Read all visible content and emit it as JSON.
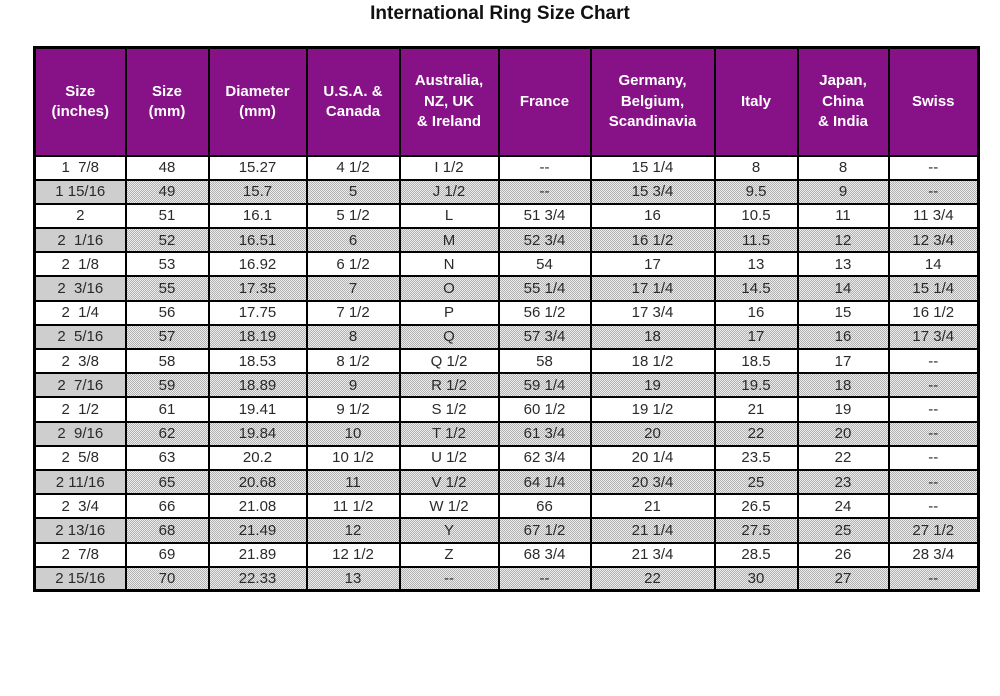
{
  "title": "International Ring Size Chart",
  "colors": {
    "header_bg": "#871287",
    "header_text": "#ffffff",
    "border_color": "#000000",
    "text_color": "#2a2a2a",
    "page_bg": "#ffffff"
  },
  "chart_data": {
    "type": "table",
    "title": "International Ring Size Chart",
    "columns": [
      "Size\n(inches)",
      "Size\n(mm)",
      "Diameter\n(mm)",
      "U.S.A. &\nCanada",
      "Australia,\nNZ, UK\n& Ireland",
      "France",
      "Germany,\nBelgium,\nScandinavia",
      "Italy",
      "Japan,\nChina\n& India",
      "Swiss"
    ],
    "rows": [
      [
        "1  7/8",
        "48",
        "15.27",
        "4 1/2",
        "I 1/2",
        "--",
        "15 1/4",
        "8",
        "8",
        "--"
      ],
      [
        "1 15/16",
        "49",
        "15.7",
        "5",
        "J 1/2",
        "--",
        "15 3/4",
        "9.5",
        "9",
        "--"
      ],
      [
        "2",
        "51",
        "16.1",
        "5 1/2",
        "L",
        "51 3/4",
        "16",
        "10.5",
        "11",
        "11 3/4"
      ],
      [
        "2  1/16",
        "52",
        "16.51",
        "6",
        "M",
        "52 3/4",
        "16 1/2",
        "11.5",
        "12",
        "12 3/4"
      ],
      [
        "2  1/8",
        "53",
        "16.92",
        "6 1/2",
        "N",
        "54",
        "17",
        "13",
        "13",
        "14"
      ],
      [
        "2  3/16",
        "55",
        "17.35",
        "7",
        "O",
        "55 1/4",
        "17 1/4",
        "14.5",
        "14",
        "15 1/4"
      ],
      [
        "2  1/4",
        "56",
        "17.75",
        "7 1/2",
        "P",
        "56 1/2",
        "17 3/4",
        "16",
        "15",
        "16 1/2"
      ],
      [
        "2  5/16",
        "57",
        "18.19",
        "8",
        "Q",
        "57 3/4",
        "18",
        "17",
        "16",
        "17 3/4"
      ],
      [
        "2  3/8",
        "58",
        "18.53",
        "8 1/2",
        "Q 1/2",
        "58",
        "18 1/2",
        "18.5",
        "17",
        "--"
      ],
      [
        "2  7/16",
        "59",
        "18.89",
        "9",
        "R 1/2",
        "59 1/4",
        "19",
        "19.5",
        "18",
        "--"
      ],
      [
        "2  1/2",
        "61",
        "19.41",
        "9 1/2",
        "S 1/2",
        "60 1/2",
        "19 1/2",
        "21",
        "19",
        "--"
      ],
      [
        "2  9/16",
        "62",
        "19.84",
        "10",
        "T 1/2",
        "61 3/4",
        "20",
        "22",
        "20",
        "--"
      ],
      [
        "2  5/8",
        "63",
        "20.2",
        "10 1/2",
        "U 1/2",
        "62 3/4",
        "20 1/4",
        "23.5",
        "22",
        "--"
      ],
      [
        "2 11/16",
        "65",
        "20.68",
        "11",
        "V 1/2",
        "64 1/4",
        "20 3/4",
        "25",
        "23",
        "--"
      ],
      [
        "2  3/4",
        "66",
        "21.08",
        "11 1/2",
        "W 1/2",
        "66",
        "21",
        "26.5",
        "24",
        "--"
      ],
      [
        "2 13/16",
        "68",
        "21.49",
        "12",
        "Y",
        "67 1/2",
        "21 1/4",
        "27.5",
        "25",
        "27 1/2"
      ],
      [
        "2  7/8",
        "69",
        "21.89",
        "12 1/2",
        "Z",
        "68 3/4",
        "21 3/4",
        "28.5",
        "26",
        "28 3/4"
      ],
      [
        "2 15/16",
        "70",
        "22.33",
        "13",
        "--",
        "--",
        "22",
        "30",
        "27",
        "--"
      ]
    ]
  }
}
